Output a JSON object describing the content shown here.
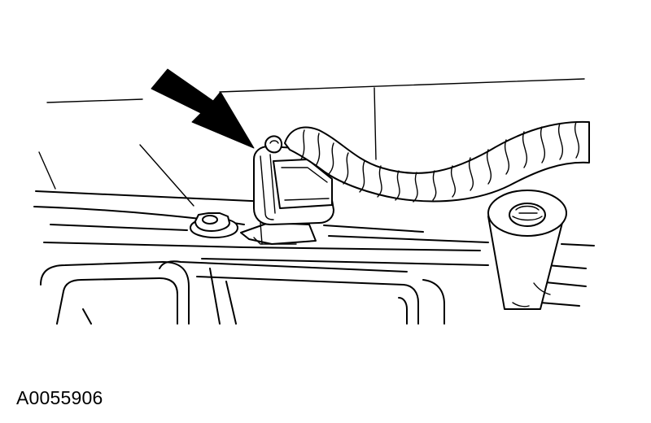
{
  "figure": {
    "id_label": "A0055906"
  },
  "colors": {
    "line": "#000000",
    "background": "#ffffff"
  },
  "icons": {
    "pointer": "arrow-icon"
  }
}
